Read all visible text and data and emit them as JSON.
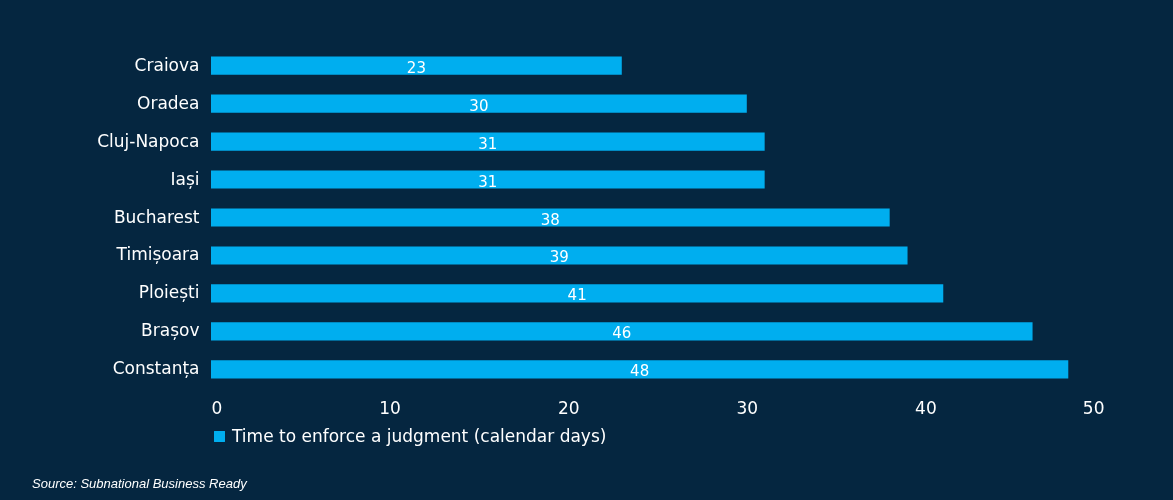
{
  "chart_data": {
    "type": "bar",
    "orientation": "horizontal",
    "categories": [
      "Craiova",
      "Oradea",
      "Cluj-Napoca",
      "Iași",
      "Bucharest",
      "Timișoara",
      "Ploiești",
      "Brașov",
      "Constanța"
    ],
    "series": [
      {
        "name": "Time to enforce a judgment (calendar days)",
        "color": "#00aeef",
        "values": [
          23,
          30,
          31,
          31,
          38,
          39,
          41,
          46,
          48
        ]
      }
    ],
    "xlim": [
      0,
      50
    ],
    "xticks": [
      0,
      10,
      20,
      30,
      40,
      50
    ],
    "grid": false,
    "legend": "bottom",
    "data_labels": true,
    "annotations": [
      "Source: Subnational Business Ready"
    ]
  }
}
